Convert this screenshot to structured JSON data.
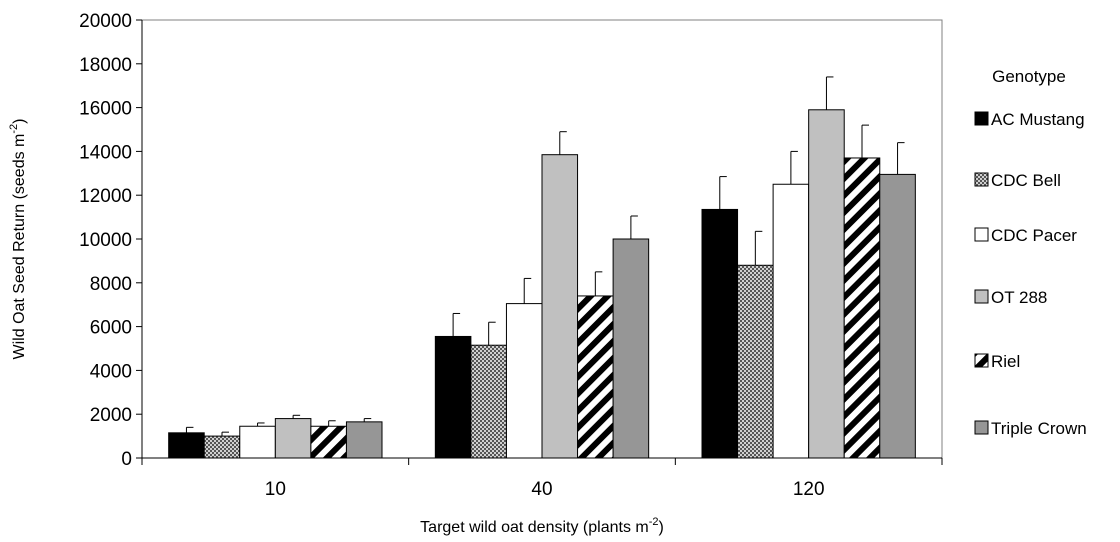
{
  "chart_data": {
    "type": "bar",
    "xlabel": "Target wild oat density (plants m",
    "xlabel_sup": "-2",
    "xlabel_end": ")",
    "ylabel": "Wild Oat Seed Return (seeds m",
    "ylabel_sup": "-2",
    "ylabel_end": ")",
    "ylim": [
      0,
      20000
    ],
    "yticks": [
      0,
      2000,
      4000,
      6000,
      8000,
      10000,
      12000,
      14000,
      16000,
      18000,
      20000
    ],
    "categories": [
      "10",
      "40",
      "120"
    ],
    "grid": false,
    "legend": {
      "title": "Genotype",
      "placement": "right"
    },
    "series": [
      {
        "name": "AC Mustang",
        "pattern": "solid-black",
        "values": [
          1150,
          5550,
          11350
        ],
        "errors": [
          250,
          1050,
          1500
        ]
      },
      {
        "name": "CDC Bell",
        "pattern": "checker",
        "values": [
          1000,
          5150,
          8800
        ],
        "errors": [
          180,
          1050,
          1550
        ]
      },
      {
        "name": "CDC Pacer",
        "pattern": "white",
        "values": [
          1450,
          7050,
          12500
        ],
        "errors": [
          150,
          1150,
          1500
        ]
      },
      {
        "name": "OT 288",
        "pattern": "light-gray",
        "values": [
          1800,
          13850,
          15900
        ],
        "errors": [
          150,
          1050,
          1500
        ]
      },
      {
        "name": "Riel",
        "pattern": "diagonal",
        "values": [
          1450,
          7400,
          13700
        ],
        "errors": [
          250,
          1100,
          1500
        ]
      },
      {
        "name": "Triple Crown",
        "pattern": "dark-gray",
        "values": [
          1650,
          10000,
          12950
        ],
        "errors": [
          150,
          1050,
          1450
        ]
      }
    ],
    "colors": {
      "black": "#000000",
      "checker_fg": "#555555",
      "checker_bg": "#cfcfcf",
      "light_gray": "#c0c0c0",
      "dark_gray": "#969696",
      "axis": "#000000",
      "plot_border": "#808080"
    }
  }
}
